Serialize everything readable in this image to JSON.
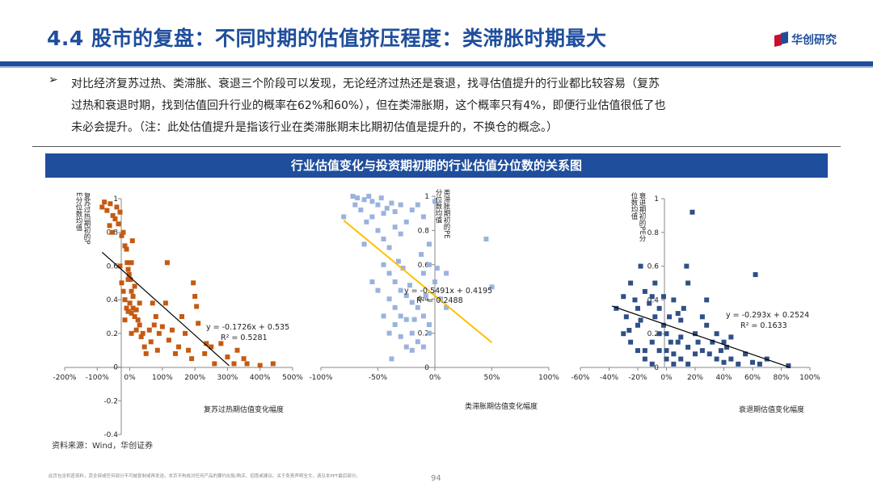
{
  "header": {
    "title": "4.4 股市的复盘：不同时期的估值挤压程度：类滞胀时期最大",
    "logo_text": "华创研究"
  },
  "bullet": {
    "mark": "➢",
    "lines": [
      "对比经济复苏过热、类滞胀、衰退三个阶段可以发现，无论经济过热还是衰退，找寻估值提升的行业都比较容易（复苏",
      "过热和衰退时期，找到估值回升行业的概率在62%和60%），但在类滞胀期，这个概率只有4%，即便行业估值很低了也",
      "未必会提升。（注：此处估值提升是指该行业在类滞胀期末比期初估值是提升的，不换仓的概念。）"
    ]
  },
  "chart_banner": "行业估值变化与投资期初期的行业估值分位数的关系图",
  "footer": {
    "source": "资料来源：Wind，华创证券",
    "disclaimer": "此页包含机密资料，其全部或任何部分不可被复制或再发送。本页不构成对任何产品的要约出售/购买、招揽或建议。关于免责声明全文，请见本PPT最后部分。",
    "page_number": "94"
  },
  "colors": {
    "brand_blue": "#1f4e9c",
    "chart1_marker": "#c55a11",
    "chart2_marker": "#9ab3dd",
    "chart2_trend": "#ffc000",
    "chart3_marker": "#2f4f86",
    "trend_black": "#000000"
  },
  "chart_data": [
    {
      "type": "scatter",
      "title": "",
      "xlabel": "复苏过热期估值变化幅度",
      "ylabel": "复苏过热期初的PE分位数均值",
      "xlim": [
        -2.0,
        5.0
      ],
      "ylim": [
        -0.4,
        1.0
      ],
      "x_ticks": [
        -2,
        -1,
        0,
        1,
        2,
        3,
        4,
        5
      ],
      "x_tick_labels": [
        "-200%",
        "-100%",
        "0%",
        "100%",
        "200%",
        "300%",
        "400%",
        "500%"
      ],
      "y_ticks": [
        -0.4,
        -0.2,
        0,
        0.2,
        0.4,
        0.6,
        0.8,
        1
      ],
      "y_tick_labels": [
        "-0.4",
        "-0.2",
        "0",
        "0.2",
        "0.4",
        "0.6",
        "0.8",
        "1"
      ],
      "trendline": {
        "slope": -0.1726,
        "intercept": 0.535,
        "x_range": [
          -0.85,
          3.05
        ]
      },
      "equation": "y = -0.1726x + 0.535",
      "r2": "R² = 0.5281",
      "points": [
        [
          -0.85,
          0.95
        ],
        [
          -0.78,
          0.98
        ],
        [
          -0.7,
          0.93
        ],
        [
          -0.6,
          0.97
        ],
        [
          -0.52,
          0.9
        ],
        [
          -0.45,
          0.88
        ],
        [
          -0.4,
          0.95
        ],
        [
          -0.35,
          0.85
        ],
        [
          -0.3,
          0.92
        ],
        [
          -0.25,
          0.78
        ],
        [
          -0.55,
          0.8
        ],
        [
          -0.62,
          0.84
        ],
        [
          -0.2,
          0.8
        ],
        [
          -0.15,
          0.72
        ],
        [
          -0.1,
          0.7
        ],
        [
          -0.08,
          0.62
        ],
        [
          -0.05,
          0.58
        ],
        [
          -0.02,
          0.55
        ],
        [
          0.02,
          0.52
        ],
        [
          0.05,
          0.62
        ],
        [
          0.08,
          0.75
        ],
        [
          -0.3,
          0.6
        ],
        [
          -0.25,
          0.5
        ],
        [
          -0.2,
          0.45
        ],
        [
          -0.15,
          0.4
        ],
        [
          -0.1,
          0.35
        ],
        [
          -0.05,
          0.33
        ],
        [
          0.0,
          0.38
        ],
        [
          0.05,
          0.32
        ],
        [
          0.1,
          0.35
        ],
        [
          0.15,
          0.3
        ],
        [
          0.2,
          0.34
        ],
        [
          0.25,
          0.28
        ],
        [
          0.1,
          0.42
        ],
        [
          0.15,
          0.48
        ],
        [
          0.05,
          0.45
        ],
        [
          -0.05,
          0.52
        ],
        [
          0.2,
          0.22
        ],
        [
          0.3,
          0.25
        ],
        [
          0.35,
          0.18
        ],
        [
          0.4,
          0.2
        ],
        [
          0.45,
          0.12
        ],
        [
          0.5,
          0.08
        ],
        [
          0.6,
          0.22
        ],
        [
          0.65,
          0.15
        ],
        [
          0.7,
          0.38
        ],
        [
          0.75,
          0.25
        ],
        [
          0.8,
          0.3
        ],
        [
          0.85,
          0.1
        ],
        [
          0.9,
          0.2
        ],
        [
          1.0,
          0.24
        ],
        [
          1.1,
          0.38
        ],
        [
          1.2,
          0.16
        ],
        [
          1.3,
          0.22
        ],
        [
          1.4,
          0.08
        ],
        [
          1.5,
          0.12
        ],
        [
          1.6,
          0.3
        ],
        [
          1.7,
          0.2
        ],
        [
          1.8,
          0.1
        ],
        [
          1.9,
          0.05
        ],
        [
          2.0,
          0.42
        ],
        [
          1.95,
          0.5
        ],
        [
          2.05,
          0.36
        ],
        [
          2.1,
          0.26
        ],
        [
          2.3,
          0.08
        ],
        [
          2.5,
          0.12
        ],
        [
          2.6,
          0.02
        ],
        [
          2.8,
          0.14
        ],
        [
          3.0,
          0.06
        ],
        [
          3.2,
          0.02
        ],
        [
          3.3,
          0.1
        ],
        [
          3.5,
          0.05
        ],
        [
          3.6,
          0.02
        ],
        [
          4.0,
          0.01
        ],
        [
          4.4,
          0.02
        ],
        [
          1.15,
          0.62
        ],
        [
          2.35,
          0.14
        ],
        [
          0.05,
          0.2
        ],
        [
          -0.15,
          0.28
        ],
        [
          0.3,
          0.38
        ]
      ]
    },
    {
      "type": "scatter",
      "title": "",
      "xlabel": "类滞胀期估值变化幅度",
      "ylabel": "类滞胀期初的PE分位数均值",
      "xlim": [
        -1.0,
        1.0
      ],
      "ylim": [
        0,
        1.0
      ],
      "x_ticks": [
        -1,
        -0.5,
        0,
        0.5,
        1
      ],
      "x_tick_labels": [
        "-100%",
        "-50%",
        "0%",
        "50%",
        "100%"
      ],
      "y_ticks": [
        0,
        0.2,
        0.4,
        0.6,
        0.8,
        1
      ],
      "y_tick_labels": [
        "0",
        "0.2",
        "0.4",
        "0.6",
        "0.8",
        "1"
      ],
      "trendline": {
        "slope": -0.5491,
        "intercept": 0.4195,
        "x_range": [
          -0.8,
          0.5
        ]
      },
      "equation": "y = -0.5491x + 0.4195",
      "r2": "R² = 0.2488",
      "points": [
        [
          -0.8,
          0.88
        ],
        [
          -0.72,
          1.0
        ],
        [
          -0.68,
          0.99
        ],
        [
          -0.62,
          0.98
        ],
        [
          -0.58,
          1.0
        ],
        [
          -0.55,
          0.97
        ],
        [
          -0.5,
          0.95
        ],
        [
          -0.47,
          0.99
        ],
        [
          -0.45,
          0.9
        ],
        [
          -0.42,
          0.93
        ],
        [
          -0.38,
          0.96
        ],
        [
          -0.35,
          0.91
        ],
        [
          -0.3,
          0.95
        ],
        [
          -0.7,
          0.95
        ],
        [
          -0.65,
          0.92
        ],
        [
          -0.6,
          0.85
        ],
        [
          -0.55,
          0.88
        ],
        [
          -0.5,
          0.8
        ],
        [
          -0.45,
          0.75
        ],
        [
          -0.4,
          0.7
        ],
        [
          -0.35,
          0.82
        ],
        [
          -0.3,
          0.78
        ],
        [
          -0.25,
          0.85
        ],
        [
          -0.2,
          0.92
        ],
        [
          -0.15,
          0.95
        ],
        [
          -0.1,
          0.88
        ],
        [
          -0.05,
          0.72
        ],
        [
          0.0,
          0.97
        ],
        [
          -0.45,
          0.6
        ],
        [
          -0.4,
          0.55
        ],
        [
          -0.35,
          0.5
        ],
        [
          -0.3,
          0.45
        ],
        [
          -0.25,
          0.42
        ],
        [
          -0.2,
          0.38
        ],
        [
          -0.15,
          0.35
        ],
        [
          -0.1,
          0.3
        ],
        [
          -0.05,
          0.25
        ],
        [
          -0.4,
          0.4
        ],
        [
          -0.35,
          0.35
        ],
        [
          -0.3,
          0.3
        ],
        [
          -0.25,
          0.28
        ],
        [
          -0.2,
          0.2
        ],
        [
          -0.15,
          0.15
        ],
        [
          -0.1,
          0.12
        ],
        [
          -0.05,
          0.2
        ],
        [
          -0.35,
          0.25
        ],
        [
          -0.3,
          0.18
        ],
        [
          -0.25,
          0.12
        ],
        [
          -0.2,
          0.1
        ],
        [
          -0.4,
          0.2
        ],
        [
          -0.45,
          0.3
        ],
        [
          -0.5,
          0.45
        ],
        [
          -0.55,
          0.5
        ],
        [
          -0.38,
          0.05
        ],
        [
          -0.1,
          0.55
        ],
        [
          -0.05,
          0.6
        ],
        [
          0.0,
          0.5
        ],
        [
          0.05,
          0.4
        ],
        [
          0.1,
          0.55
        ],
        [
          0.1,
          0.35
        ],
        [
          0.45,
          0.75
        ],
        [
          0.5,
          0.47
        ],
        [
          -0.62,
          0.72
        ],
        [
          -0.28,
          0.58
        ],
        [
          -0.12,
          0.66
        ],
        [
          -0.22,
          0.48
        ],
        [
          -0.32,
          0.62
        ],
        [
          -0.18,
          0.28
        ],
        [
          0.02,
          0.58
        ],
        [
          -0.08,
          0.42
        ]
      ]
    },
    {
      "type": "scatter",
      "title": "",
      "xlabel": "衰退期估值变化幅度",
      "ylabel": "衰退期初的PE分位数均值",
      "xlim": [
        -0.6,
        1.0
      ],
      "ylim": [
        0,
        1.0
      ],
      "x_ticks": [
        -0.6,
        -0.4,
        -0.2,
        0,
        0.2,
        0.4,
        0.6,
        0.8,
        1.0
      ],
      "x_tick_labels": [
        "-60%",
        "-40%",
        "-20%",
        "0%",
        "20%",
        "40%",
        "60%",
        "80%",
        "100%"
      ],
      "y_ticks": [
        0,
        0.2,
        0.4,
        0.6,
        0.8,
        1
      ],
      "y_tick_labels": [
        "0",
        "0.2",
        "0.4",
        "0.6",
        "0.8",
        "1"
      ],
      "trendline": {
        "slope": -0.293,
        "intercept": 0.2524,
        "x_range": [
          -0.38,
          0.86
        ]
      },
      "equation": "y = -0.293x + 0.2524",
      "r2": "R² = 0.1633",
      "points": [
        [
          -0.35,
          0.35
        ],
        [
          -0.3,
          0.42
        ],
        [
          -0.28,
          0.3
        ],
        [
          -0.25,
          0.5
        ],
        [
          -0.22,
          0.4
        ],
        [
          -0.2,
          0.35
        ],
        [
          -0.18,
          0.6
        ],
        [
          -0.15,
          0.45
        ],
        [
          -0.12,
          0.38
        ],
        [
          -0.1,
          0.42
        ],
        [
          -0.08,
          0.3
        ],
        [
          -0.05,
          0.35
        ],
        [
          -0.02,
          0.25
        ],
        [
          0.0,
          0.2
        ],
        [
          0.02,
          0.3
        ],
        [
          0.05,
          0.4
        ],
        [
          0.08,
          0.15
        ],
        [
          0.1,
          0.28
        ],
        [
          0.12,
          0.35
        ],
        [
          0.15,
          0.5
        ],
        [
          0.18,
          0.92
        ],
        [
          0.2,
          0.2
        ],
        [
          0.22,
          0.15
        ],
        [
          0.25,
          0.1
        ],
        [
          0.28,
          0.25
        ],
        [
          0.3,
          0.08
        ],
        [
          0.32,
          0.15
        ],
        [
          0.35,
          0.05
        ],
        [
          0.38,
          0.1
        ],
        [
          0.4,
          0.03
        ],
        [
          0.42,
          0.12
        ],
        [
          0.45,
          0.05
        ],
        [
          0.5,
          0.02
        ],
        [
          0.55,
          0.08
        ],
        [
          0.6,
          0.03
        ],
        [
          0.62,
          0.55
        ],
        [
          0.65,
          0.02
        ],
        [
          0.7,
          0.05
        ],
        [
          0.85,
          0.01
        ],
        [
          -0.3,
          0.2
        ],
        [
          -0.25,
          0.15
        ],
        [
          -0.2,
          0.25
        ],
        [
          -0.15,
          0.1
        ],
        [
          -0.1,
          0.15
        ],
        [
          -0.05,
          0.1
        ],
        [
          0.0,
          0.05
        ],
        [
          0.05,
          0.08
        ],
        [
          0.1,
          0.05
        ],
        [
          0.15,
          0.12
        ],
        [
          0.2,
          0.08
        ],
        [
          -0.2,
          0.1
        ],
        [
          -0.15,
          0.05
        ],
        [
          -0.1,
          0.02
        ],
        [
          -0.05,
          0.2
        ],
        [
          0.0,
          0.1
        ],
        [
          0.05,
          0.02
        ],
        [
          0.1,
          0.18
        ],
        [
          0.15,
          0.02
        ],
        [
          0.25,
          0.3
        ],
        [
          0.35,
          0.2
        ],
        [
          0.14,
          0.6
        ],
        [
          -0.08,
          0.5
        ],
        [
          0.28,
          0.4
        ],
        [
          -0.18,
          0.28
        ],
        [
          0.03,
          0.15
        ],
        [
          0.4,
          0.15
        ],
        [
          -0.26,
          0.22
        ],
        [
          0.45,
          0.18
        ],
        [
          0.08,
          0.32
        ],
        [
          -0.02,
          0.42
        ]
      ]
    }
  ]
}
